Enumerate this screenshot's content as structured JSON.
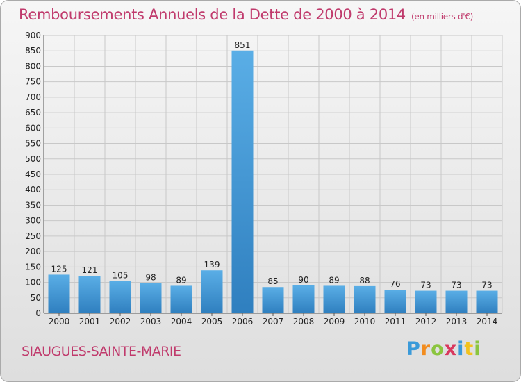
{
  "header": {
    "title": "Remboursements Annuels de la Dette de 2000 à 2014",
    "unit": "(en milliers d'€)"
  },
  "footer": {
    "commune": "SIAUGUES-SAINTE-MARIE",
    "logo": [
      "P",
      "r",
      "o",
      "x",
      "i",
      "t",
      "i"
    ]
  },
  "colors": {
    "title": "#c03a6c",
    "bar_top": "#5aaee6",
    "bar_bottom": "#2f7fbf"
  },
  "chart_data": {
    "type": "bar",
    "categories": [
      "2000",
      "2001",
      "2002",
      "2003",
      "2004",
      "2005",
      "2006",
      "2007",
      "2008",
      "2009",
      "2010",
      "2011",
      "2012",
      "2013",
      "2014"
    ],
    "values": [
      125,
      121,
      105,
      98,
      89,
      139,
      851,
      85,
      90,
      89,
      88,
      76,
      73,
      73,
      73
    ],
    "title": "Remboursements Annuels de la Dette de 2000 à 2014",
    "ylim": [
      0,
      900
    ],
    "yticks": [
      0,
      50,
      100,
      150,
      200,
      250,
      300,
      350,
      400,
      450,
      500,
      550,
      600,
      650,
      700,
      750,
      800,
      850,
      900
    ],
    "grid": true,
    "legend": "none"
  }
}
